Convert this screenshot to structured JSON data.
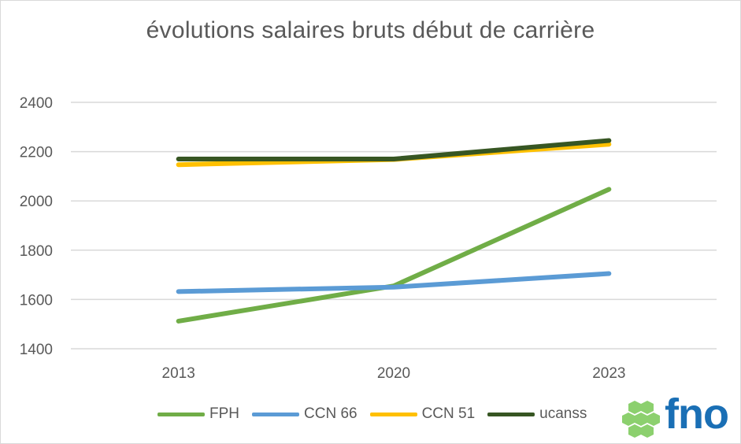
{
  "chart_data": {
    "type": "line",
    "title": "évolutions salaires bruts début de carrière",
    "categories": [
      "2013",
      "2020",
      "2023"
    ],
    "ylim": [
      1400,
      2400
    ],
    "yticks": [
      1400,
      1600,
      1800,
      2000,
      2200,
      2400
    ],
    "grid": true,
    "legend_position": "bottom",
    "series": [
      {
        "name": "FPH",
        "values": [
          1512,
          1655,
          2047
        ],
        "color": "#70ad47"
      },
      {
        "name": "CCN 66",
        "values": [
          1632,
          1650,
          1705
        ],
        "color": "#5b9bd5"
      },
      {
        "name": "CCN 51",
        "values": [
          2147,
          2168,
          2230
        ],
        "color": "#ffc000"
      },
      {
        "name": "ucanss",
        "values": [
          2170,
          2170,
          2245
        ],
        "color": "#375623"
      }
    ]
  },
  "logo": {
    "text": "fno",
    "icon": "hexagon-cluster-icon",
    "hex_color": "#8cd06e",
    "text_color": "#1a6fb5"
  }
}
